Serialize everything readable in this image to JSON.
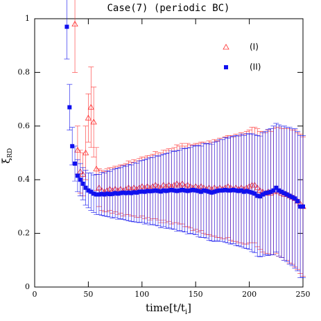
{
  "chart_data": {
    "type": "errorbar-scatter",
    "title": "Case(7) (periodic BC)",
    "xlabel": {
      "text": "time[t/t",
      "sub": "i",
      "close": "]"
    },
    "ylabel": {
      "text": "ξ",
      "sub": "RD"
    },
    "xlim": [
      0,
      250
    ],
    "ylim": [
      0,
      1
    ],
    "xticks": [
      0,
      50,
      100,
      150,
      200,
      250
    ],
    "yticks": [
      0,
      0.2,
      0.4,
      0.6,
      0.8,
      1
    ],
    "series": [
      {
        "name": "(I)",
        "color": "#ff3030",
        "marker": "triangle-open",
        "x": [
          37.5,
          40,
          42.5,
          45,
          47.5,
          50,
          52.5,
          55,
          57.5,
          60,
          62.5,
          65,
          67.5,
          70,
          72.5,
          75,
          77.5,
          80,
          82.5,
          85,
          87.5,
          90,
          92.5,
          95,
          97.5,
          100,
          102.5,
          105,
          107.5,
          110,
          112.5,
          115,
          117.5,
          120,
          122.5,
          125,
          127.5,
          130,
          132.5,
          135,
          137.5,
          140,
          142.5,
          145,
          147.5,
          150,
          152.5,
          155,
          157.5,
          160,
          162.5,
          165,
          167.5,
          170,
          172.5,
          175,
          177.5,
          180,
          182.5,
          185,
          187.5,
          190,
          192.5,
          195,
          197.5,
          200,
          202.5,
          205,
          207.5,
          210,
          212.5,
          215,
          217.5,
          220,
          222.5,
          225,
          227.5,
          230,
          232.5,
          235,
          237.5,
          240,
          242.5,
          245,
          247.5,
          250
        ],
        "values": [
          0.98,
          0.51,
          0.43,
          0.42,
          0.5,
          0.63,
          0.67,
          0.615,
          0.44,
          0.37,
          0.36,
          0.355,
          0.36,
          0.365,
          0.36,
          0.365,
          0.36,
          0.365,
          0.36,
          0.365,
          0.37,
          0.365,
          0.37,
          0.365,
          0.37,
          0.375,
          0.37,
          0.375,
          0.37,
          0.375,
          0.38,
          0.375,
          0.37,
          0.38,
          0.375,
          0.38,
          0.375,
          0.38,
          0.385,
          0.38,
          0.385,
          0.375,
          0.38,
          0.375,
          0.37,
          0.375,
          0.37,
          0.375,
          0.37,
          0.365,
          0.37,
          0.365,
          0.37,
          0.365,
          0.37,
          0.365,
          0.37,
          0.375,
          0.37,
          0.365,
          0.37,
          0.365,
          0.37,
          0.365,
          0.37,
          0.375,
          0.38,
          0.38,
          0.37,
          0.36,
          0.355,
          0.35,
          0.355,
          0.35,
          0.355,
          0.36,
          0.355,
          0.35,
          0.345,
          0.345,
          0.34,
          0.335,
          0.33,
          0.32,
          0.31,
          0.3
        ],
        "errors": [
          0.18,
          0.09,
          0.08,
          0.08,
          0.1,
          0.09,
          0.15,
          0.13,
          0.08,
          0.07,
          0.075,
          0.075,
          0.08,
          0.08,
          0.085,
          0.085,
          0.09,
          0.09,
          0.095,
          0.095,
          0.1,
          0.1,
          0.105,
          0.105,
          0.11,
          0.11,
          0.115,
          0.115,
          0.12,
          0.12,
          0.125,
          0.125,
          0.13,
          0.13,
          0.135,
          0.135,
          0.14,
          0.14,
          0.145,
          0.145,
          0.15,
          0.15,
          0.155,
          0.155,
          0.16,
          0.16,
          0.165,
          0.165,
          0.17,
          0.17,
          0.175,
          0.175,
          0.18,
          0.18,
          0.185,
          0.185,
          0.19,
          0.19,
          0.195,
          0.195,
          0.2,
          0.2,
          0.205,
          0.205,
          0.21,
          0.21,
          0.215,
          0.215,
          0.22,
          0.22,
          0.225,
          0.225,
          0.23,
          0.23,
          0.235,
          0.235,
          0.24,
          0.24,
          0.245,
          0.245,
          0.25,
          0.25,
          0.255,
          0.255,
          0.26,
          0.26
        ]
      },
      {
        "name": "(II)",
        "color": "#1010ee",
        "marker": "square",
        "x": [
          30,
          32.5,
          35,
          37.5,
          40,
          42.5,
          45,
          47.5,
          50,
          52.5,
          55,
          57.5,
          60,
          62.5,
          65,
          67.5,
          70,
          72.5,
          75,
          77.5,
          80,
          82.5,
          85,
          87.5,
          90,
          92.5,
          95,
          97.5,
          100,
          102.5,
          105,
          107.5,
          110,
          112.5,
          115,
          117.5,
          120,
          122.5,
          125,
          127.5,
          130,
          132.5,
          135,
          137.5,
          140,
          142.5,
          145,
          147.5,
          150,
          152.5,
          155,
          157.5,
          160,
          162.5,
          165,
          167.5,
          170,
          172.5,
          175,
          177.5,
          180,
          182.5,
          185,
          187.5,
          190,
          192.5,
          195,
          197.5,
          200,
          202.5,
          205,
          207.5,
          210,
          212.5,
          215,
          217.5,
          220,
          222.5,
          225,
          227.5,
          230,
          232.5,
          235,
          237.5,
          240,
          242.5,
          245,
          247.5,
          250
        ],
        "values": [
          0.97,
          0.67,
          0.525,
          0.46,
          0.415,
          0.4,
          0.385,
          0.37,
          0.36,
          0.355,
          0.348,
          0.345,
          0.345,
          0.347,
          0.345,
          0.348,
          0.346,
          0.347,
          0.35,
          0.348,
          0.35,
          0.352,
          0.35,
          0.352,
          0.35,
          0.353,
          0.352,
          0.355,
          0.356,
          0.355,
          0.358,
          0.357,
          0.358,
          0.36,
          0.358,
          0.356,
          0.36,
          0.358,
          0.36,
          0.362,
          0.36,
          0.358,
          0.36,
          0.362,
          0.36,
          0.358,
          0.36,
          0.362,
          0.36,
          0.358,
          0.355,
          0.36,
          0.358,
          0.355,
          0.352,
          0.355,
          0.358,
          0.36,
          0.36,
          0.362,
          0.36,
          0.36,
          0.362,
          0.36,
          0.358,
          0.36,
          0.355,
          0.358,
          0.355,
          0.352,
          0.348,
          0.34,
          0.338,
          0.345,
          0.35,
          0.352,
          0.355,
          0.36,
          0.37,
          0.36,
          0.355,
          0.35,
          0.345,
          0.34,
          0.335,
          0.33,
          0.32,
          0.3,
          0.3
        ],
        "errors": [
          0.12,
          0.085,
          0.07,
          0.065,
          0.06,
          0.06,
          0.06,
          0.065,
          0.065,
          0.07,
          0.07,
          0.075,
          0.075,
          0.08,
          0.08,
          0.085,
          0.085,
          0.09,
          0.09,
          0.095,
          0.095,
          0.1,
          0.1,
          0.105,
          0.105,
          0.11,
          0.11,
          0.115,
          0.115,
          0.12,
          0.12,
          0.125,
          0.125,
          0.13,
          0.13,
          0.135,
          0.135,
          0.14,
          0.14,
          0.145,
          0.145,
          0.15,
          0.15,
          0.155,
          0.155,
          0.16,
          0.16,
          0.165,
          0.165,
          0.17,
          0.17,
          0.175,
          0.175,
          0.18,
          0.18,
          0.185,
          0.185,
          0.19,
          0.19,
          0.195,
          0.195,
          0.2,
          0.2,
          0.205,
          0.205,
          0.21,
          0.21,
          0.215,
          0.215,
          0.22,
          0.22,
          0.225,
          0.225,
          0.23,
          0.23,
          0.235,
          0.235,
          0.24,
          0.24,
          0.245,
          0.245,
          0.25,
          0.25,
          0.255,
          0.255,
          0.26,
          0.26,
          0.265,
          0.265
        ]
      }
    ]
  }
}
